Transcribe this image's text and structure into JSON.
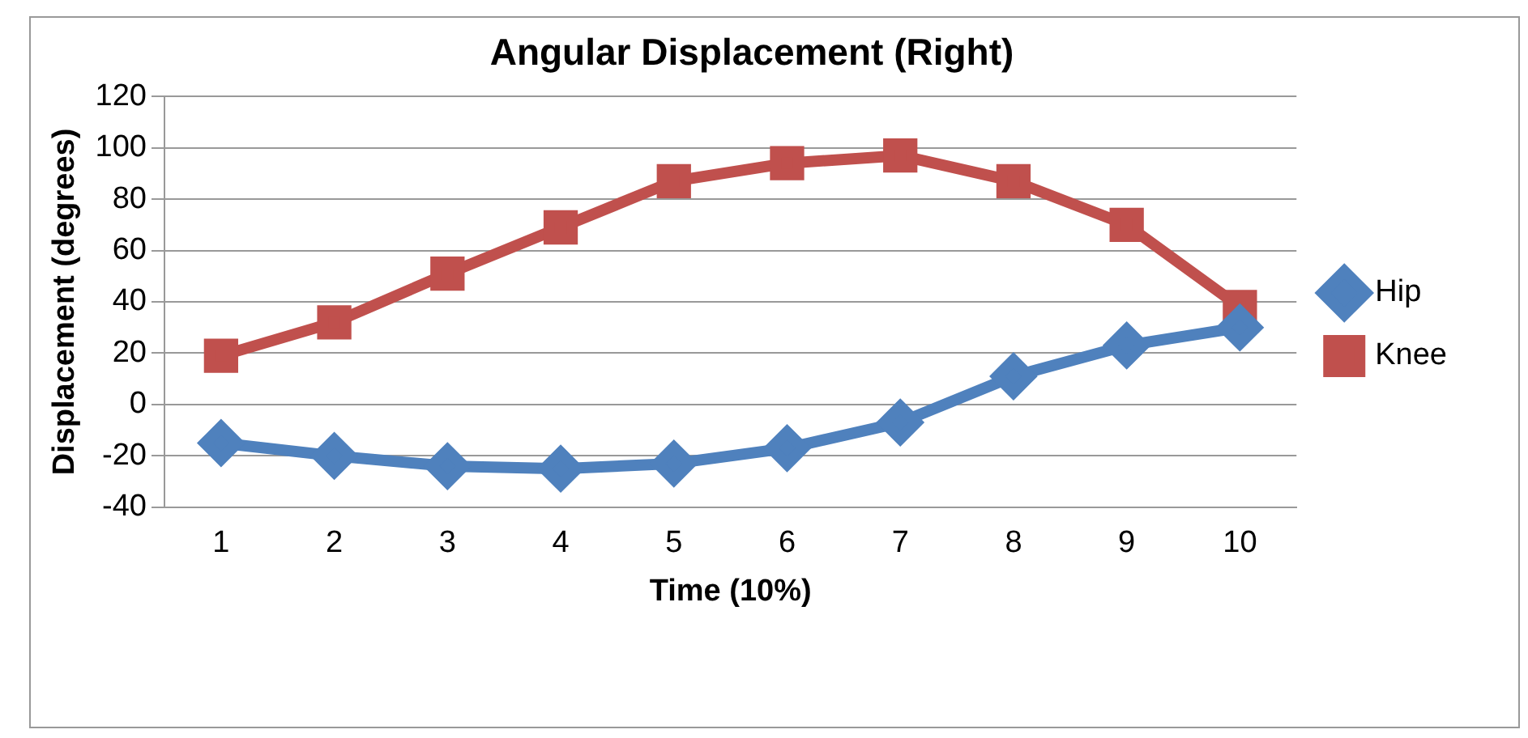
{
  "chart_data": {
    "type": "line",
    "title": "Angular Displacement (Right)",
    "xlabel": "Time (10%)",
    "ylabel": "Displacement (degrees)",
    "categories": [
      "1",
      "2",
      "3",
      "4",
      "5",
      "6",
      "7",
      "8",
      "9",
      "10"
    ],
    "series": [
      {
        "name": "Hip",
        "color": "#4f81bd",
        "marker": "diamond",
        "values": [
          -15,
          -20,
          -24,
          -25,
          -23,
          -17,
          -7,
          11,
          23,
          30
        ]
      },
      {
        "name": "Knee",
        "color": "#c0504d",
        "marker": "square",
        "values": [
          19,
          32,
          51,
          69,
          87,
          94,
          97,
          87,
          70,
          38
        ]
      }
    ],
    "ylim": [
      -40,
      120
    ],
    "yticks": [
      -40,
      -20,
      0,
      20,
      40,
      60,
      80,
      100,
      120
    ],
    "grid": "y",
    "legend": "right"
  }
}
